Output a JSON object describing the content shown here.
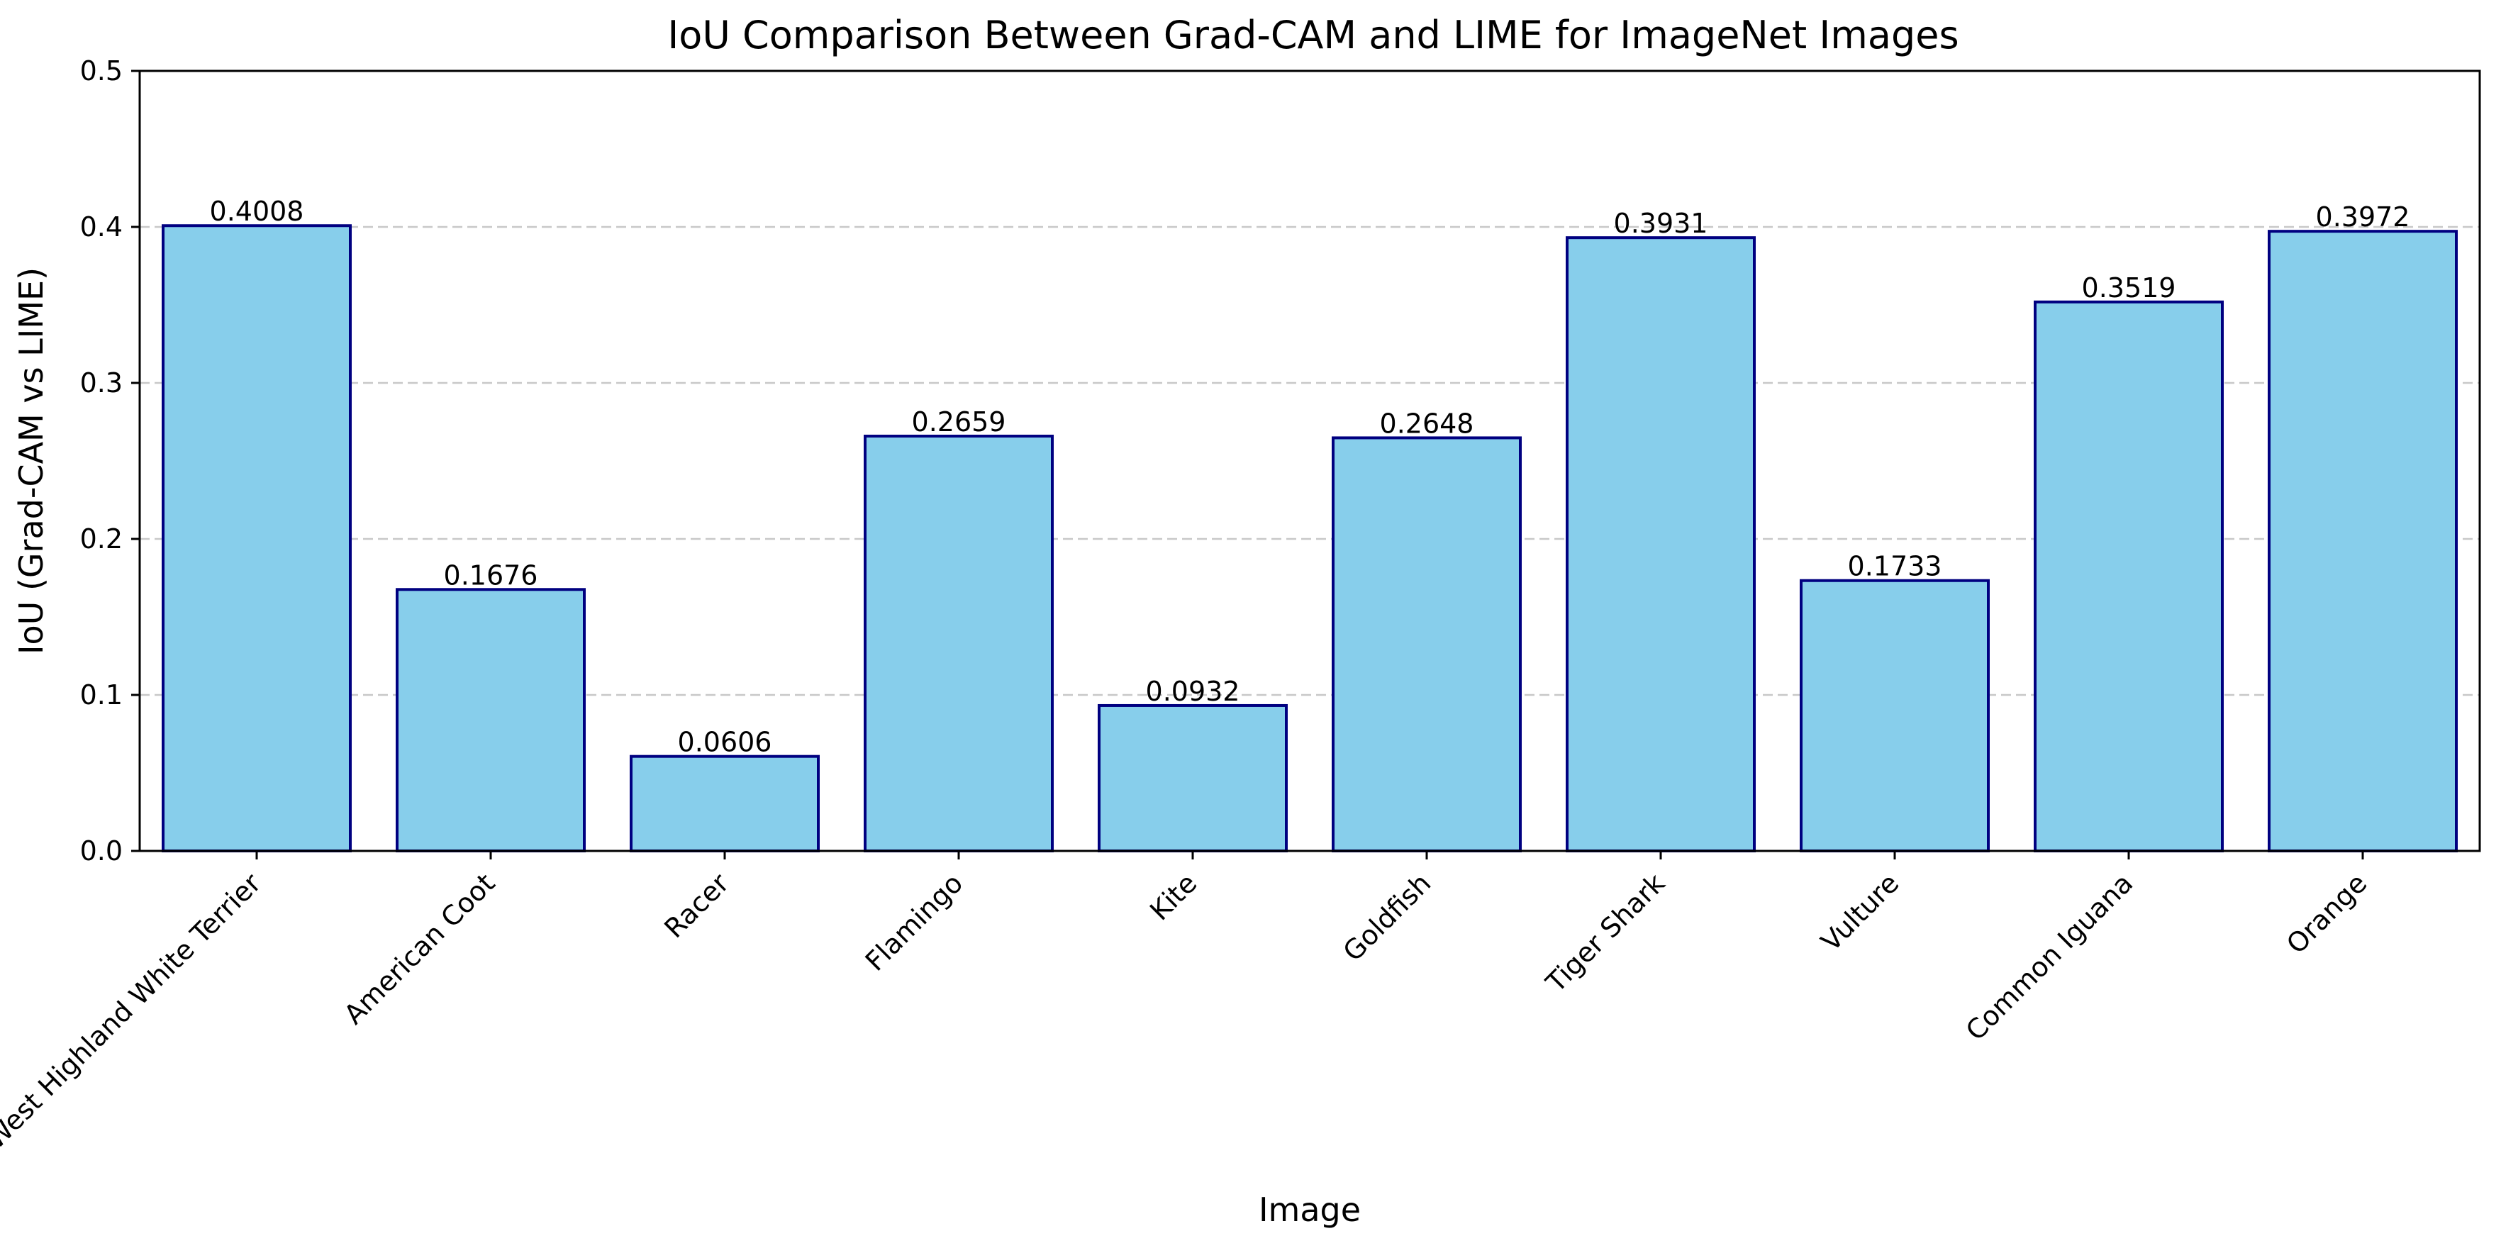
{
  "chart_data": {
    "type": "bar",
    "title": "IoU Comparison Between Grad-CAM and LIME for ImageNet Images",
    "xlabel": "Image",
    "ylabel": "IoU (Grad-CAM vs LIME)",
    "categories": [
      "West Highland White Terrier",
      "American Coot",
      "Racer",
      "Flamingo",
      "Kite",
      "Goldfish",
      "Tiger Shark",
      "Vulture",
      "Common Iguana",
      "Orange"
    ],
    "values": [
      0.4008,
      0.1676,
      0.0606,
      0.2659,
      0.0932,
      0.2648,
      0.3931,
      0.1733,
      0.3519,
      0.3972
    ],
    "value_labels": [
      "0.4008",
      "0.1676",
      "0.0606",
      "0.2659",
      "0.0932",
      "0.2648",
      "0.3931",
      "0.1733",
      "0.3519",
      "0.3972"
    ],
    "ylim": [
      0,
      0.5
    ],
    "yticks": [
      0.0,
      0.1,
      0.2,
      0.3,
      0.4,
      0.5
    ],
    "ytick_labels": [
      "0.0",
      "0.1",
      "0.2",
      "0.3",
      "0.4",
      "0.5"
    ],
    "grid": "y-dashed",
    "bar_color": "#87CEEB",
    "bar_edge_color": "#000080",
    "grid_color": "#c8c8c8"
  }
}
